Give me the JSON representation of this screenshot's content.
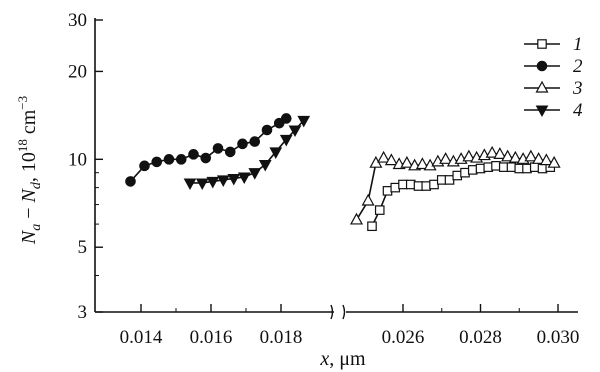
{
  "chart_data": {
    "type": "line",
    "yscale": "log",
    "ylim": [
      3,
      30
    ],
    "y_ticks": [
      "30",
      "20",
      "10",
      "5",
      "3"
    ],
    "y_tick_values": [
      30,
      20,
      10,
      5,
      3
    ],
    "x_break": true,
    "x_left_range": [
      0.013,
      0.019
    ],
    "x_right_range": [
      0.024,
      0.031
    ],
    "x_ticks_left": [
      "0.014",
      "0.016",
      "0.018"
    ],
    "x_ticks_right": [
      "0.026",
      "0.028",
      "0.030"
    ],
    "xlabel_var": "x",
    "xlabel_unit": ", μm",
    "ylabel_main": "N",
    "ylabel_sub_a": "a",
    "ylabel_minus": " − ",
    "ylabel_sub_d": "d",
    "ylabel_unit": ", 10",
    "ylabel_exp": "18",
    "ylabel_unit2": " cm",
    "ylabel_exp2": "−3",
    "legend_position": "top-right",
    "series": [
      {
        "name": "1",
        "marker": "open-square",
        "x": [
          0.0252,
          0.0254,
          0.0256,
          0.0258,
          0.026,
          0.0262,
          0.0264,
          0.0266,
          0.0268,
          0.027,
          0.0272,
          0.0274,
          0.0276,
          0.0278,
          0.028,
          0.0282,
          0.0284,
          0.0286,
          0.0288,
          0.029,
          0.0292,
          0.0294,
          0.0296,
          0.0298
        ],
        "values": [
          5.9,
          6.7,
          7.8,
          8.0,
          8.2,
          8.2,
          8.1,
          8.1,
          8.2,
          8.5,
          8.5,
          8.8,
          9.0,
          9.2,
          9.3,
          9.4,
          9.5,
          9.4,
          9.4,
          9.3,
          9.3,
          9.4,
          9.3,
          9.4
        ]
      },
      {
        "name": "2",
        "marker": "filled-circle",
        "x": [
          0.0137,
          0.0141,
          0.01445,
          0.0148,
          0.01515,
          0.0155,
          0.01585,
          0.0162,
          0.01655,
          0.0169,
          0.01725,
          0.0176,
          0.01795,
          0.01815
        ],
        "values": [
          8.4,
          9.5,
          9.8,
          10.0,
          10.0,
          10.4,
          10.1,
          10.9,
          10.6,
          11.3,
          11.5,
          12.6,
          13.3,
          13.8
        ]
      },
      {
        "name": "3",
        "marker": "open-triangle-up",
        "x": [
          0.0248,
          0.0251,
          0.0253,
          0.0255,
          0.0257,
          0.0259,
          0.0261,
          0.0263,
          0.0265,
          0.0267,
          0.0269,
          0.0271,
          0.0273,
          0.0275,
          0.0277,
          0.0279,
          0.0281,
          0.0283,
          0.0285,
          0.0287,
          0.0289,
          0.0291,
          0.0293,
          0.0295,
          0.0297,
          0.0299
        ],
        "values": [
          6.2,
          7.2,
          9.7,
          10.1,
          9.9,
          9.6,
          9.7,
          9.5,
          9.6,
          9.5,
          9.8,
          10.0,
          9.8,
          10.0,
          10.2,
          10.1,
          10.3,
          10.5,
          10.4,
          10.2,
          10.1,
          10.0,
          10.2,
          10.0,
          9.9,
          9.7
        ]
      },
      {
        "name": "4",
        "marker": "filled-triangle-down",
        "x": [
          0.0154,
          0.01575,
          0.01605,
          0.01635,
          0.01665,
          0.01695,
          0.01725,
          0.01755,
          0.01785,
          0.01815,
          0.0184,
          0.01865
        ],
        "values": [
          8.3,
          8.3,
          8.4,
          8.5,
          8.6,
          8.7,
          9.0,
          9.6,
          10.6,
          11.7,
          12.6,
          13.6
        ]
      }
    ]
  }
}
